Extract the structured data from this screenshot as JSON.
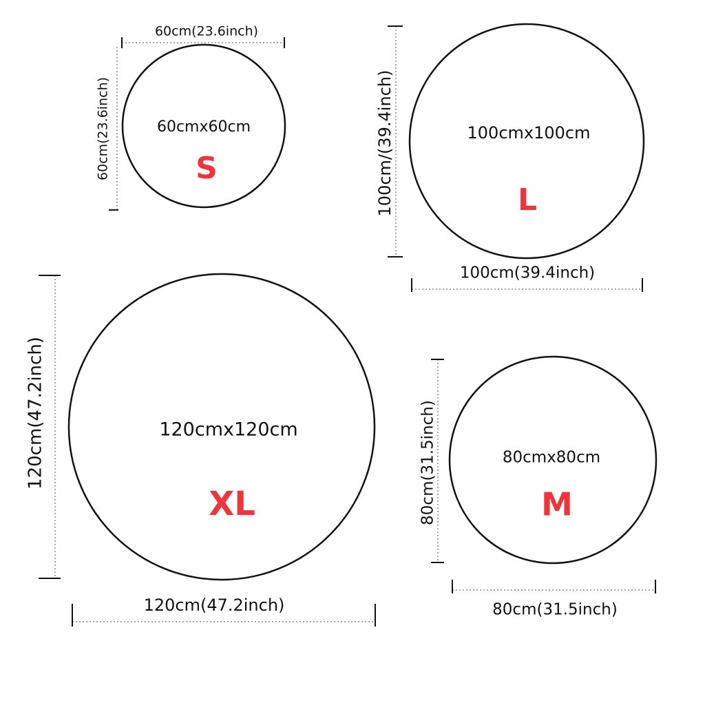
{
  "items": [
    {
      "size": "S",
      "dimensions": "60cmx60cm",
      "width_label": "60cm(23.6inch)",
      "height_label": "60cm(23.6inch)"
    },
    {
      "size": "L",
      "dimensions": "100cmx100cm",
      "width_label": "100cm(39.4inch)",
      "height_label": "100cm/(39.4inch)"
    },
    {
      "size": "XL",
      "dimensions": "120cmx120cm",
      "width_label": "120cm(47.2inch)",
      "height_label": "120cm(47.2inch)"
    },
    {
      "size": "M",
      "dimensions": "80cmx80cm",
      "width_label": "80cm(31.5inch)",
      "height_label": "80cm(31.5inch)"
    }
  ]
}
